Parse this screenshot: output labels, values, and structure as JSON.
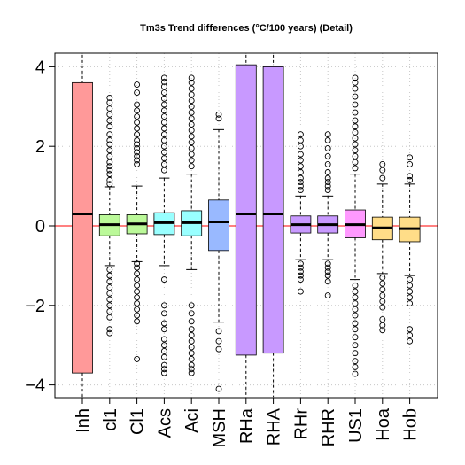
{
  "chart_data": {
    "type": "boxplot",
    "title": "Tm3s Trend differences (°C/100 years) (Detail)",
    "xlabel": "",
    "ylabel": "",
    "ylim": [
      -4.3,
      4.3
    ],
    "yticks": [
      -4,
      -2,
      0,
      2,
      4
    ],
    "ytick_labels": [
      "−4",
      "−2",
      "0",
      "2",
      "4"
    ],
    "grid": true,
    "reference_line": {
      "y": 0,
      "color": "#ff0000"
    },
    "categories": [
      "Inh",
      "cl1",
      "Cl1",
      "Acs",
      "Aci",
      "MSH",
      "RHa",
      "RHA",
      "RHr",
      "RHR",
      "US1",
      "Hoa",
      "Hob"
    ],
    "boxes": [
      {
        "name": "Inh",
        "color": "#ff9999",
        "q1": -3.7,
        "median": 0.3,
        "q3": 3.6,
        "lower_whisker": -4.3,
        "upper_whisker": 4.3,
        "outliers": []
      },
      {
        "name": "cl1",
        "color": "#bbf999",
        "q1": -0.25,
        "median": 0.03,
        "q3": 0.28,
        "lower_whisker": -1.0,
        "upper_whisker": 0.98,
        "outliers": [
          1.05,
          1.15,
          1.3,
          1.4,
          1.5,
          1.6,
          1.75,
          1.9,
          2.05,
          2.15,
          2.3,
          2.5,
          2.65,
          2.8,
          2.95,
          3.1,
          3.22,
          -1.1,
          -1.25,
          -1.4,
          -1.55,
          -1.7,
          -1.85,
          -2.0,
          -2.15,
          -2.3,
          -2.6,
          -2.7
        ]
      },
      {
        "name": "Cl1",
        "color": "#bbf999",
        "q1": -0.2,
        "median": 0.05,
        "q3": 0.28,
        "lower_whisker": -0.9,
        "upper_whisker": 1.0,
        "outliers": [
          1.55,
          1.65,
          1.75,
          1.85,
          1.95,
          2.05,
          2.15,
          2.3,
          2.45,
          2.6,
          2.75,
          2.9,
          3.05,
          3.35,
          3.55,
          -0.95,
          -1.05,
          -1.2,
          -1.35,
          -1.5,
          -1.65,
          -1.8,
          -1.95,
          -2.1,
          -2.25,
          -2.4,
          -3.35
        ]
      },
      {
        "name": "Acs",
        "color": "#99ffff",
        "q1": -0.22,
        "median": 0.08,
        "q3": 0.33,
        "lower_whisker": -1.0,
        "upper_whisker": 1.2,
        "outliers": [
          1.4,
          1.55,
          1.7,
          1.85,
          2.0,
          2.15,
          2.3,
          2.45,
          2.6,
          2.75,
          2.9,
          3.05,
          3.2,
          3.35,
          3.5,
          3.62,
          3.72,
          -1.35,
          -2.0,
          -2.2,
          -2.45,
          -2.6,
          -2.85,
          -3.0,
          -3.15,
          -3.3,
          -3.5,
          -3.6,
          -3.7
        ]
      },
      {
        "name": "Aci",
        "color": "#99ffff",
        "q1": -0.25,
        "median": 0.08,
        "q3": 0.38,
        "lower_whisker": -1.1,
        "upper_whisker": 1.3,
        "outliers": [
          1.5,
          1.65,
          1.8,
          1.95,
          2.1,
          2.25,
          2.4,
          2.55,
          2.7,
          2.85,
          3.0,
          3.15,
          3.3,
          3.45,
          3.6,
          3.72,
          -2.0,
          -2.2,
          -2.4,
          -2.6,
          -2.75,
          -2.9,
          -3.05,
          -3.2,
          -3.35,
          -3.5,
          -3.6,
          -3.7
        ]
      },
      {
        "name": "MSH",
        "color": "#99b9ff",
        "q1": -0.62,
        "median": 0.1,
        "q3": 0.65,
        "lower_whisker": -2.42,
        "upper_whisker": 2.42,
        "outliers": [
          2.7,
          2.8,
          -2.65,
          -2.9,
          -3.1,
          -4.1
        ]
      },
      {
        "name": "RHa",
        "color": "#c899ff",
        "q1": -3.25,
        "median": 0.3,
        "q3": 4.05,
        "lower_whisker": -4.3,
        "upper_whisker": 4.3,
        "outliers": []
      },
      {
        "name": "RHA",
        "color": "#c899ff",
        "q1": -3.2,
        "median": 0.3,
        "q3": 4.0,
        "lower_whisker": -4.3,
        "upper_whisker": 4.3,
        "outliers": []
      },
      {
        "name": "RHr",
        "color": "#c899ff",
        "q1": -0.18,
        "median": 0.03,
        "q3": 0.25,
        "lower_whisker": -0.85,
        "upper_whisker": 0.75,
        "outliers": [
          0.9,
          1.0,
          1.1,
          1.2,
          1.35,
          1.5,
          1.65,
          1.8,
          2.0,
          2.15,
          2.3,
          -0.95,
          -1.05,
          -1.15,
          -1.25,
          -1.35,
          -1.65
        ]
      },
      {
        "name": "RHR",
        "color": "#c899ff",
        "q1": -0.18,
        "median": 0.03,
        "q3": 0.25,
        "lower_whisker": -0.85,
        "upper_whisker": 0.75,
        "outliers": [
          0.9,
          1.0,
          1.1,
          1.2,
          1.35,
          1.55,
          1.75,
          1.95,
          2.15,
          2.3,
          -0.95,
          -1.05,
          -1.15,
          -1.25,
          -1.4,
          -1.75
        ]
      },
      {
        "name": "US1",
        "color": "#ff99ff",
        "q1": -0.3,
        "median": 0.03,
        "q3": 0.4,
        "lower_whisker": -1.35,
        "upper_whisker": 1.3,
        "outliers": [
          1.45,
          1.6,
          1.75,
          1.9,
          2.05,
          2.2,
          2.35,
          2.5,
          2.65,
          2.85,
          3.05,
          3.25,
          3.45,
          3.6,
          3.72,
          -1.5,
          -1.65,
          -1.8,
          -1.95,
          -2.1,
          -2.25,
          -2.45,
          -2.6,
          -2.8,
          -3.0,
          -3.2,
          -3.4,
          -3.55,
          -3.72
        ]
      },
      {
        "name": "Hoa",
        "color": "#ffdd88",
        "q1": -0.35,
        "median": -0.05,
        "q3": 0.22,
        "lower_whisker": -1.2,
        "upper_whisker": 1.05,
        "outliers": [
          1.2,
          1.4,
          1.55,
          -1.3,
          -1.45,
          -1.6,
          -1.75,
          -1.9,
          -2.05,
          -2.35,
          -2.5,
          -2.62
        ]
      },
      {
        "name": "Hob",
        "color": "#ffdd88",
        "q1": -0.4,
        "median": -0.07,
        "q3": 0.22,
        "lower_whisker": -1.25,
        "upper_whisker": 1.05,
        "outliers": [
          1.15,
          1.25,
          1.55,
          1.72,
          -1.35,
          -1.5,
          -1.65,
          -1.8,
          -1.95,
          -2.6,
          -2.75,
          -2.9
        ]
      }
    ]
  }
}
